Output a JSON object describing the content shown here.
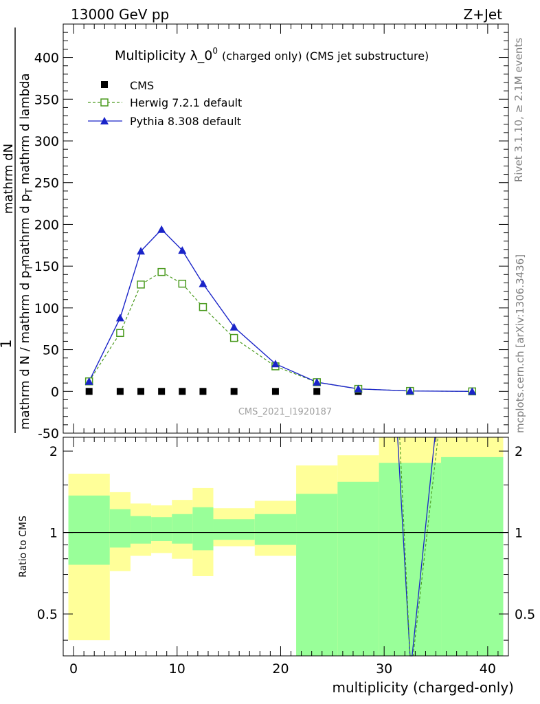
{
  "header": {
    "left": "13000 GeV pp",
    "right": "Z+Jet"
  },
  "side": {
    "rivet": "Rivet 3.1.10, ≥ 2.1M events",
    "mcplots": "mcplots.cern.ch [arXiv:1306.3436]"
  },
  "ylabel_upper": {
    "numerator": "mathrm dN",
    "one": "1",
    "line1": "mathrm d N / mathrm d p",
    "line1_sub": "T",
    "line2": " mathrm d p",
    "line2_sub": "T",
    "line2_end": " mathrm d lambda",
    "denom_tail": "mathrm d p"
  },
  "analysis_id": "CMS_2021_I1920187",
  "colors": {
    "cms": "#000000",
    "herwig": "#4a9a1e",
    "pythia": "#1a24c8",
    "band_yellow": "#ffff99",
    "band_green": "#99ff99"
  },
  "chart_data": [
    {
      "type": "scatter",
      "panel": "main",
      "title": "Multiplicity λ_0",
      "title_sup": "0",
      "title_suffix": "(charged only) (CMS jet substructure)",
      "xlabel": "multiplicity (charged-only)",
      "xlim": [
        -1,
        42
      ],
      "ylim": [
        -50,
        440
      ],
      "yticks": [
        -50,
        0,
        50,
        100,
        150,
        200,
        250,
        300,
        350,
        400
      ],
      "xticks": [
        0,
        10,
        20,
        30,
        40
      ],
      "legend_position": "top-left",
      "series": [
        {
          "name": "CMS",
          "marker": "square-filled",
          "x": [
            1.5,
            4.5,
            6.5,
            8.5,
            10.5,
            12.5,
            15.5,
            19.5,
            23.5,
            27.5,
            32.5,
            38.5
          ],
          "y": [
            0,
            0,
            0,
            0,
            0,
            0,
            0,
            0,
            0,
            0,
            0,
            0
          ]
        },
        {
          "name": "Herwig 7.2.1 default",
          "marker": "square-open",
          "line": "dashed",
          "x": [
            1.5,
            4.5,
            6.5,
            8.5,
            10.5,
            12.5,
            15.5,
            19.5,
            23.5,
            27.5,
            32.5,
            38.5
          ],
          "y": [
            12,
            70,
            128,
            143,
            129,
            101,
            64,
            30,
            11,
            3,
            0.5,
            0
          ]
        },
        {
          "name": "Pythia 8.308 default",
          "marker": "triangle-filled",
          "line": "solid",
          "x": [
            1.5,
            4.5,
            6.5,
            8.5,
            10.5,
            12.5,
            15.5,
            19.5,
            23.5,
            27.5,
            32.5,
            38.5
          ],
          "y": [
            12,
            88,
            168,
            194,
            169,
            129,
            77,
            33,
            11,
            3,
            0.5,
            0
          ]
        }
      ]
    },
    {
      "type": "area",
      "panel": "ratio",
      "ylabel": "Ratio to CMS",
      "xlabel": "multiplicity (charged-only)",
      "xlim": [
        -1,
        42
      ],
      "ylim": [
        0.35,
        2.25
      ],
      "yticks": [
        0.5,
        1,
        2
      ],
      "ytick_labels": [
        "0.5",
        "1",
        "2"
      ],
      "reference": 1,
      "bins": [
        {
          "lo": -0.5,
          "hi": 3.5,
          "y_lo": 0.4,
          "y_hi": 1.65,
          "g_lo": 0.76,
          "g_hi": 1.37
        },
        {
          "lo": 3.5,
          "hi": 5.5,
          "y_lo": 0.72,
          "y_hi": 1.41,
          "g_lo": 0.88,
          "g_hi": 1.22
        },
        {
          "lo": 5.5,
          "hi": 7.5,
          "y_lo": 0.82,
          "y_hi": 1.28,
          "g_lo": 0.91,
          "g_hi": 1.15
        },
        {
          "lo": 7.5,
          "hi": 9.5,
          "y_lo": 0.84,
          "y_hi": 1.26,
          "g_lo": 0.93,
          "g_hi": 1.14
        },
        {
          "lo": 9.5,
          "hi": 11.5,
          "y_lo": 0.8,
          "y_hi": 1.32,
          "g_lo": 0.91,
          "g_hi": 1.17
        },
        {
          "lo": 11.5,
          "hi": 13.5,
          "y_lo": 0.69,
          "y_hi": 1.46,
          "g_lo": 0.86,
          "g_hi": 1.24
        },
        {
          "lo": 13.5,
          "hi": 17.5,
          "y_lo": 0.89,
          "y_hi": 1.23,
          "g_lo": 0.94,
          "g_hi": 1.12
        },
        {
          "lo": 17.5,
          "hi": 21.5,
          "y_lo": 0.82,
          "y_hi": 1.31,
          "g_lo": 0.9,
          "g_hi": 1.17
        },
        {
          "lo": 21.5,
          "hi": 25.5,
          "y_lo": 0.35,
          "y_hi": 1.77,
          "g_lo": 0.35,
          "g_hi": 1.39
        },
        {
          "lo": 25.5,
          "hi": 29.5,
          "y_lo": 0.35,
          "y_hi": 1.93,
          "g_lo": 0.35,
          "g_hi": 1.54
        },
        {
          "lo": 29.5,
          "hi": 35.5,
          "y_lo": 0.35,
          "y_hi": 2.25,
          "g_lo": 0.35,
          "g_hi": 1.81
        },
        {
          "lo": 35.5,
          "hi": 41.5,
          "y_lo": 0.35,
          "y_hi": 2.25,
          "g_lo": 0.35,
          "g_hi": 1.9
        }
      ],
      "series": [
        {
          "name": "Pythia 8.308 default",
          "line": "solid",
          "x": [
            31.3,
            32.5,
            32.7,
            34.9
          ],
          "y": [
            2.25,
            0.35,
            0.35,
            2.25
          ]
        },
        {
          "name": "Herwig 7.2.1 default",
          "line": "dashed",
          "x": [
            31.5,
            32.5,
            32.8,
            35.2
          ],
          "y": [
            2.25,
            0.35,
            0.35,
            2.25
          ]
        }
      ]
    }
  ]
}
